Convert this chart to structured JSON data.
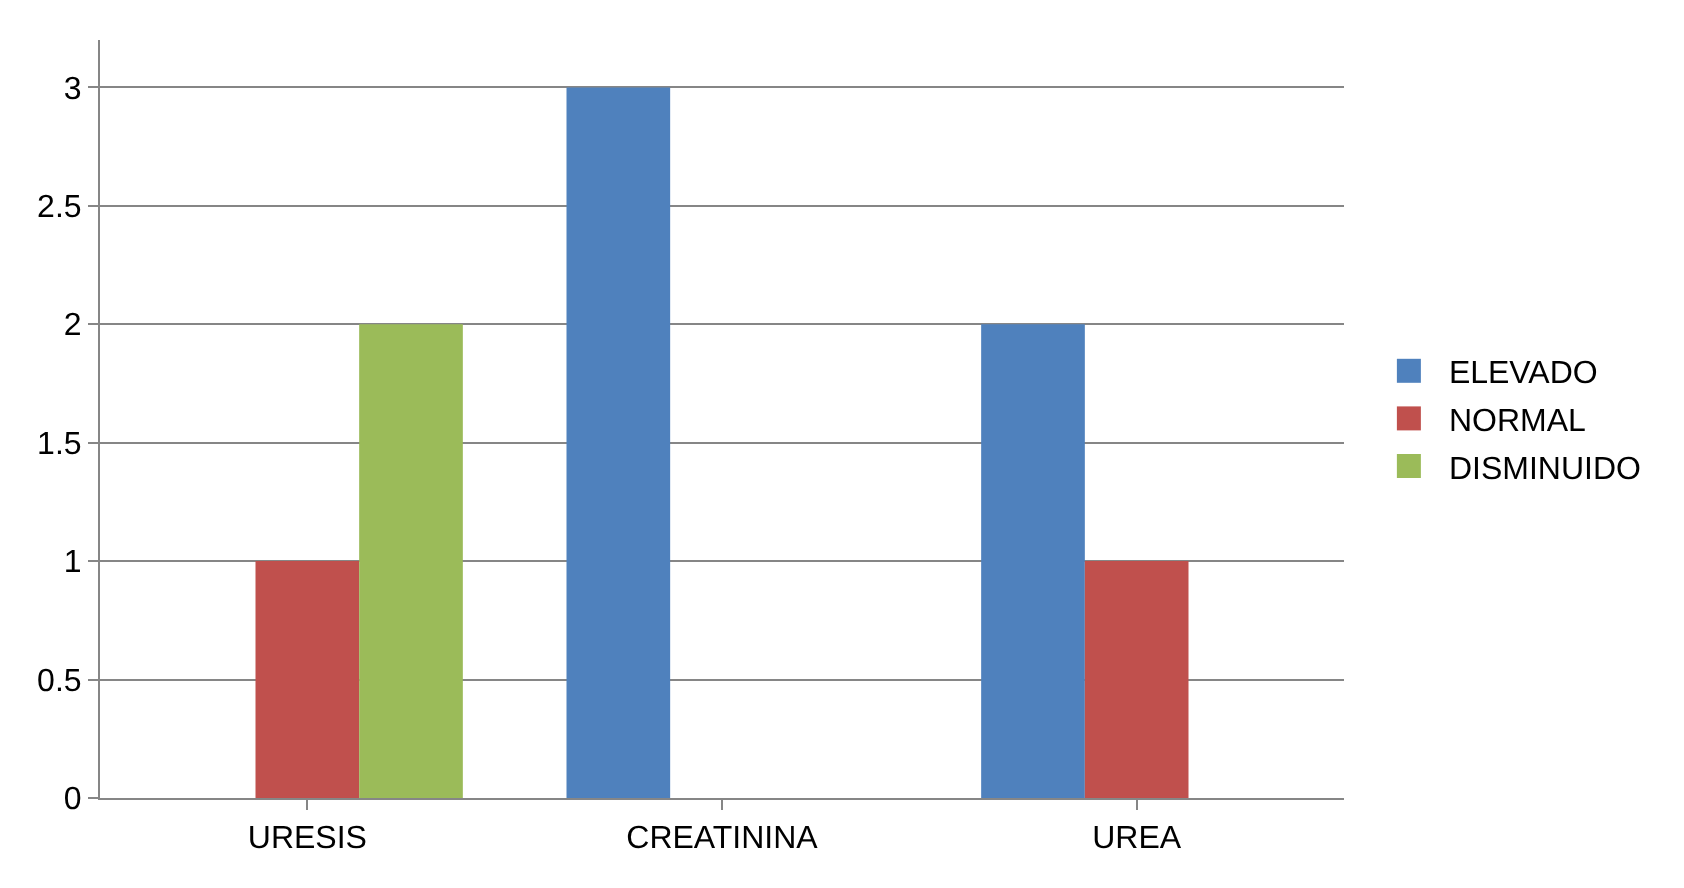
{
  "chart_data": {
    "type": "bar",
    "categories": [
      "URESIS",
      "CREATININA",
      "UREA"
    ],
    "series": [
      {
        "name": "ELEVADO",
        "color": "#4f81bd",
        "values": [
          0,
          3,
          2
        ]
      },
      {
        "name": "NORMAL",
        "color": "#c0504d",
        "values": [
          1,
          0,
          1
        ]
      },
      {
        "name": "DISMINUIDO",
        "color": "#9bbb59",
        "values": [
          2,
          0,
          0
        ]
      }
    ],
    "ylim": [
      0,
      3.2
    ],
    "yticks": [
      0,
      0.5,
      1,
      1.5,
      2,
      2.5,
      3
    ],
    "grid": "y",
    "legend": "right"
  }
}
